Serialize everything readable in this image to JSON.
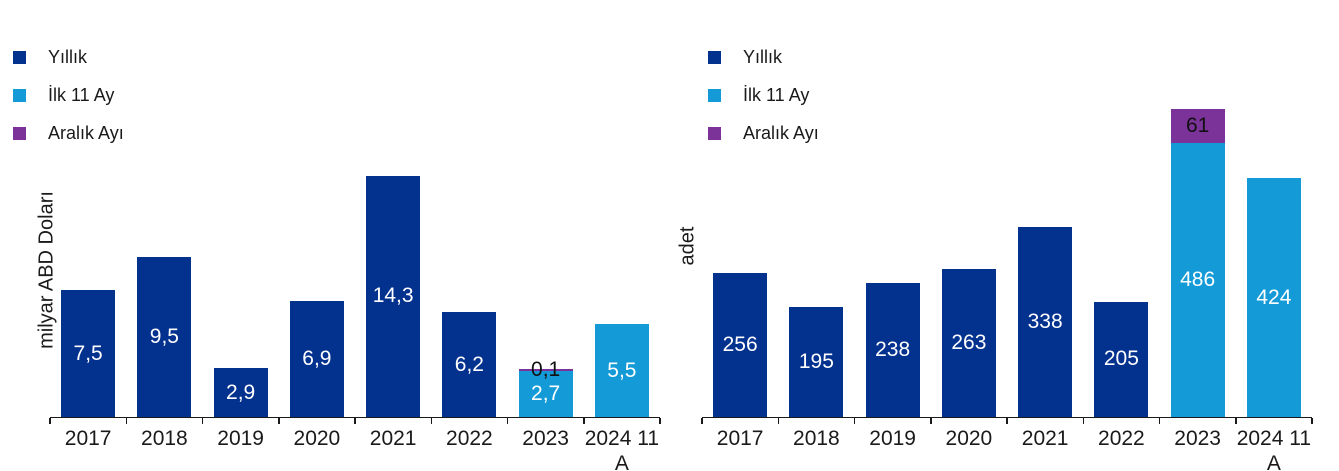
{
  "page": {
    "background": "#ffffff"
  },
  "colors": {
    "yillik": "#03318E",
    "ilk11": "#149BD7",
    "aralik": "#7B3299",
    "axis": "#1a1a1a",
    "text": "#1a1a1a",
    "label_light": "#FFFFFF",
    "label_dark": "#111111"
  },
  "legend": {
    "items": [
      {
        "label": "Yıllık",
        "color_key": "yillik"
      },
      {
        "label": "İlk 11 Ay",
        "color_key": "ilk11"
      },
      {
        "label": "Aralık Ayı",
        "color_key": "aralik"
      }
    ]
  },
  "chart_data": [
    {
      "type": "bar",
      "stacked": true,
      "title": "",
      "xlabel": "",
      "ylabel": "milyar ABD  Doları",
      "ylim": [
        0,
        16
      ],
      "grid": false,
      "legend_position": "top-left",
      "categories": [
        "2017",
        "2018",
        "2019",
        "2020",
        "2021",
        "2022",
        "2023",
        "2024 11 A"
      ],
      "series": [
        {
          "name": "Yıllık",
          "values": [
            7.5,
            9.5,
            2.9,
            6.9,
            14.3,
            6.2,
            null,
            null
          ],
          "labels": [
            "7,5",
            "9,5",
            "2,9",
            "6,9",
            "14,3",
            "6,2",
            "",
            ""
          ]
        },
        {
          "name": "İlk 11 Ay",
          "values": [
            null,
            null,
            null,
            null,
            null,
            null,
            2.7,
            5.5
          ],
          "labels": [
            "",
            "",
            "",
            "",
            "",
            "",
            "2,7",
            "5,5"
          ]
        },
        {
          "name": "Aralık Ayı",
          "values": [
            null,
            null,
            null,
            null,
            null,
            null,
            0.1,
            null
          ],
          "labels": [
            "",
            "",
            "",
            "",
            "",
            "",
            "0,1",
            ""
          ]
        }
      ]
    },
    {
      "type": "bar",
      "stacked": true,
      "title": "",
      "xlabel": "",
      "ylabel": "adet",
      "ylim": [
        0,
        600
      ],
      "grid": false,
      "legend_position": "top-left",
      "categories": [
        "2017",
        "2018",
        "2019",
        "2020",
        "2021",
        "2022",
        "2023",
        "2024 11 A"
      ],
      "series": [
        {
          "name": "Yıllık",
          "values": [
            256,
            195,
            238,
            263,
            338,
            205,
            null,
            null
          ],
          "labels": [
            "256",
            "195",
            "238",
            "263",
            "338",
            "205",
            "",
            ""
          ]
        },
        {
          "name": "İlk 11 Ay",
          "values": [
            null,
            null,
            null,
            null,
            null,
            null,
            486,
            424
          ],
          "labels": [
            "",
            "",
            "",
            "",
            "",
            "",
            "486",
            "424"
          ]
        },
        {
          "name": "Aralık Ayı",
          "values": [
            null,
            null,
            null,
            null,
            null,
            null,
            61,
            null
          ],
          "labels": [
            "",
            "",
            "",
            "",
            "",
            "",
            "61",
            ""
          ]
        }
      ]
    }
  ]
}
